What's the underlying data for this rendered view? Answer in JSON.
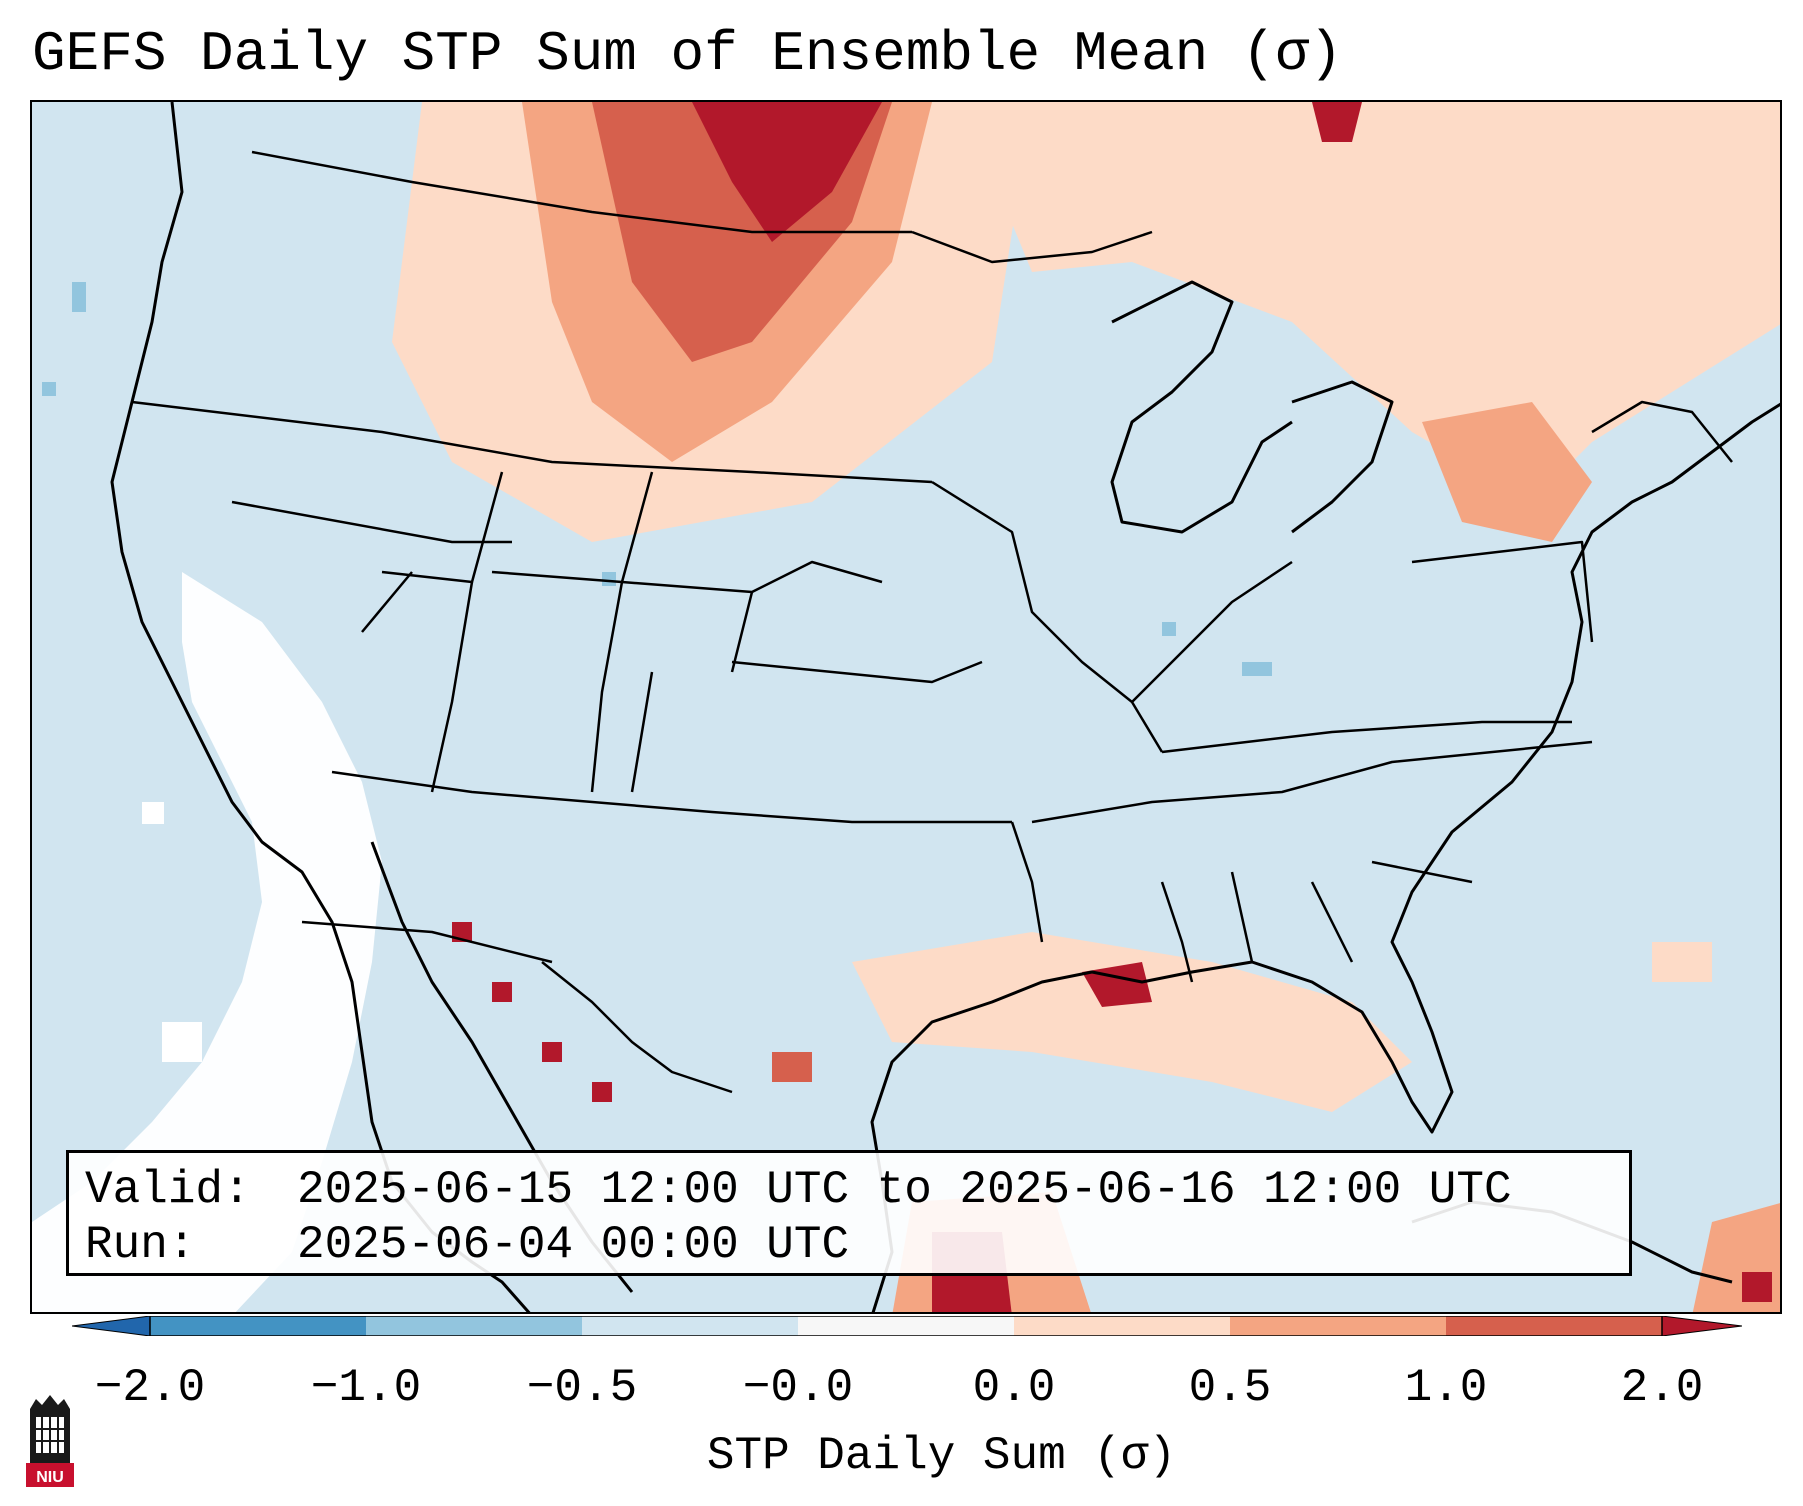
{
  "title": "GEFS Daily STP Sum of Ensemble Mean (σ)",
  "info": {
    "valid_label": "Valid:",
    "valid_value": "2025-06-15 12:00 UTC to 2025-06-16 12:00 UTC",
    "run_label": "Run:",
    "run_value": "2025-06-04 00:00 UTC"
  },
  "colorbar": {
    "label": "STP Daily Sum (σ)",
    "ticks": [
      "−2.0",
      "−1.0",
      "−0.5",
      "−0.0",
      "0.0",
      "0.5",
      "1.0",
      "2.0"
    ],
    "colors": [
      "#2166ac",
      "#4393c3",
      "#92c5de",
      "#d1e5f0",
      "#f7f7f7",
      "#fddbc7",
      "#f4a582",
      "#d6604d",
      "#b2182b"
    ]
  },
  "logo": {
    "text": "NIU"
  }
}
